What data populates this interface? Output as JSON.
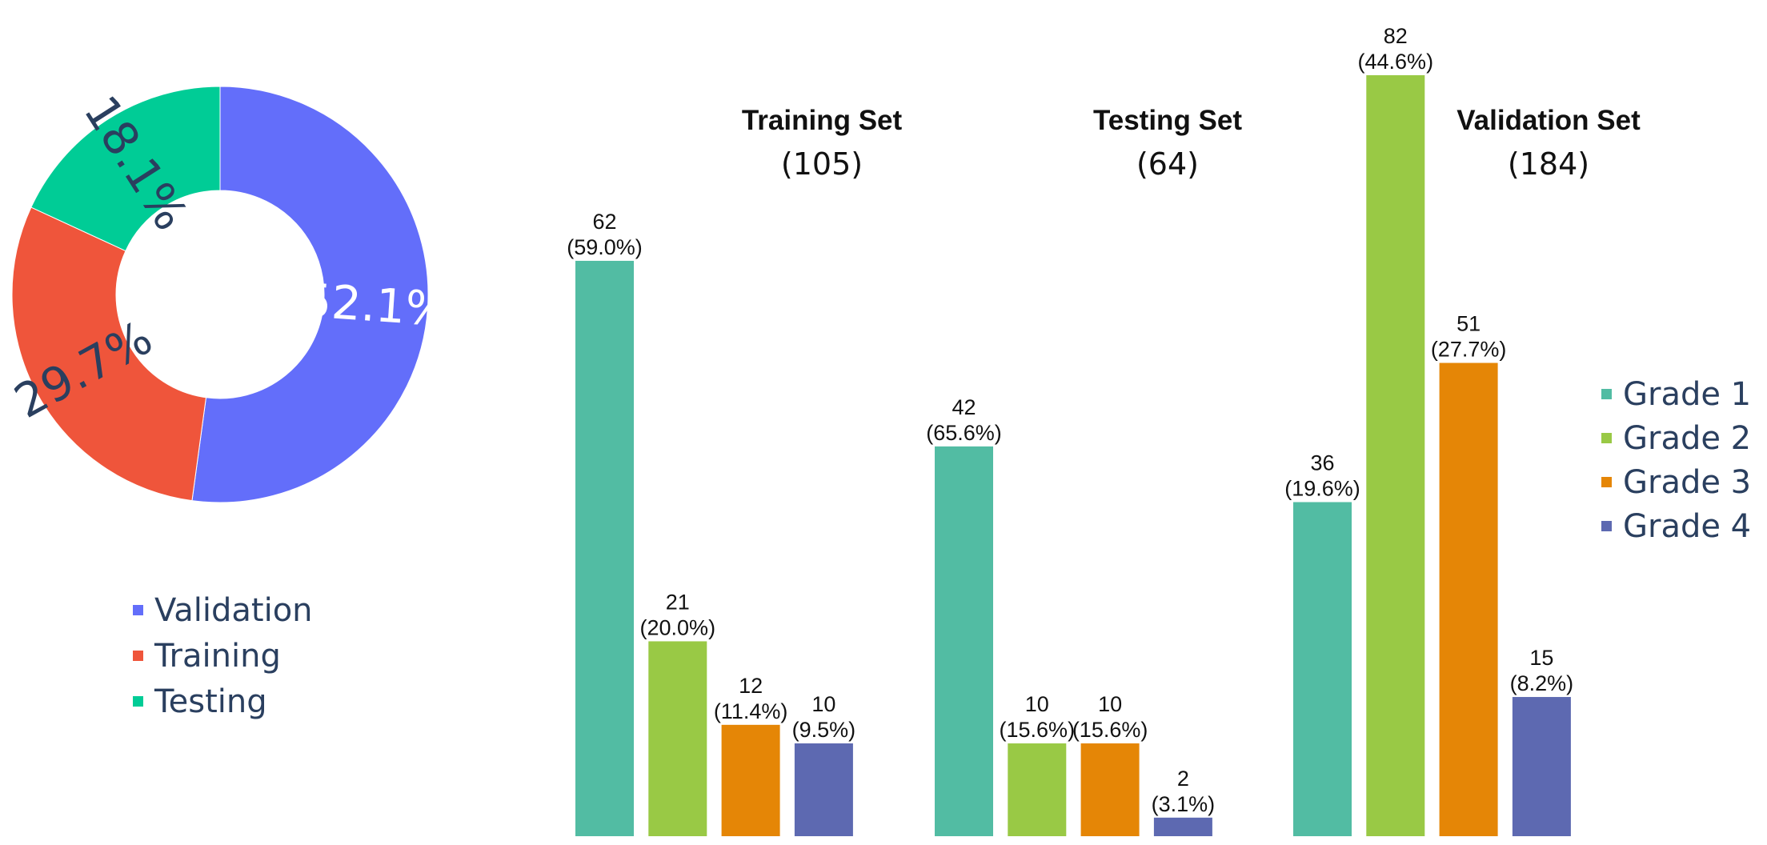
{
  "chart_data": [
    {
      "type": "pie",
      "variant": "donut",
      "labels": [
        "Validation",
        "Training",
        "Testing"
      ],
      "values": [
        52.1,
        29.7,
        18.1
      ],
      "value_labels": [
        "52.1%",
        "29.7%",
        "18.1%"
      ],
      "colors": [
        "#636efa",
        "#ef553b",
        "#00cc96"
      ],
      "label_colors": [
        "#ffffff",
        "#2a3f5f",
        "#2a3f5f"
      ],
      "legend": {
        "placement": "bottom-left",
        "items": [
          {
            "label": "Validation",
            "color": "#636efa"
          },
          {
            "label": "Training",
            "color": "#ef553b"
          },
          {
            "label": "Testing",
            "color": "#00cc96"
          }
        ]
      }
    },
    {
      "type": "bar",
      "categories": [
        "Grade 1",
        "Grade 2",
        "Grade 3",
        "Grade 4"
      ],
      "colors": [
        "#52bca3",
        "#99c945",
        "#e58606",
        "#5d69b1"
      ],
      "ylim": [
        0,
        82
      ],
      "panels": [
        {
          "title": "Training Set",
          "count_label": "(105)",
          "values": [
            62,
            21,
            12,
            10
          ],
          "value_labels": [
            "62",
            "21",
            "12",
            "10"
          ],
          "pct_labels": [
            "(59.0%)",
            "(20.0%)",
            "(11.4%)",
            "(9.5%)"
          ]
        },
        {
          "title": "Testing Set",
          "count_label": "(64)",
          "values": [
            42,
            10,
            10,
            2
          ],
          "value_labels": [
            "42",
            "10",
            "10",
            "2"
          ],
          "pct_labels": [
            "(65.6%)",
            "(15.6%)",
            "(15.6%)",
            "(3.1%)"
          ]
        },
        {
          "title": "Validation Set",
          "count_label": "(184)",
          "values": [
            36,
            82,
            51,
            15
          ],
          "value_labels": [
            "36",
            "82",
            "51",
            "15"
          ],
          "pct_labels": [
            "(19.6%)",
            "(44.6%)",
            "(27.7%)",
            "(8.2%)"
          ]
        }
      ],
      "legend": {
        "placement": "right",
        "items": [
          {
            "label": "Grade 1",
            "color": "#52bca3"
          },
          {
            "label": "Grade 2",
            "color": "#99c945"
          },
          {
            "label": "Grade 3",
            "color": "#e58606"
          },
          {
            "label": "Grade 4",
            "color": "#5d69b1"
          }
        ]
      }
    }
  ]
}
